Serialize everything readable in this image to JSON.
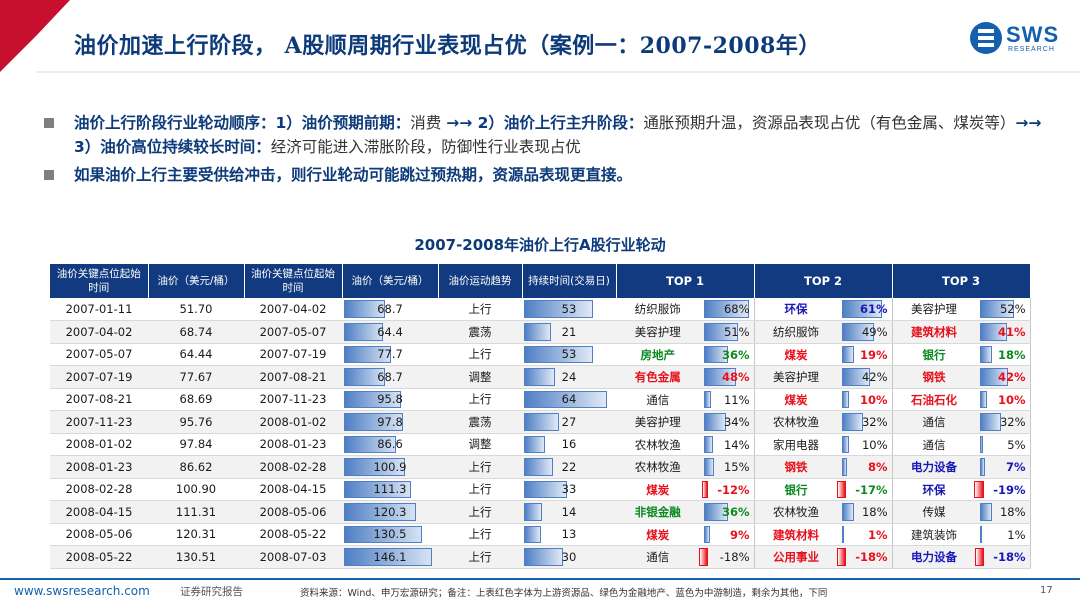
{
  "header": {
    "title": "油价加速上行阶段， A股顺周期行业表现占优（案例一：2007-2008年）",
    "logo_text": "SWS",
    "logo_sub": "RESEARCH"
  },
  "bullets": [
    {
      "parts": [
        {
          "text": "油价上行阶段行业轮动顺序：1）油价预期前期：",
          "style": "hl"
        },
        {
          "text": "消费 ",
          "style": "tx"
        },
        {
          "text": "→→ 2）油价上行主升阶段：",
          "style": "hl"
        },
        {
          "text": "通胀预期升温，资源品表现占优（有色金属、煤炭等）",
          "style": "tx"
        },
        {
          "text": "→→ 3）油价高位持续较长时间：",
          "style": "hl"
        },
        {
          "text": "经济可能进入滞胀阶段，防御性行业表现占优",
          "style": "tx"
        }
      ]
    },
    {
      "parts": [
        {
          "text": "如果油价上行主要受供给冲击，则行业轮动可能跳过预热期，资源品表现更直接。",
          "style": "hl"
        }
      ]
    }
  ],
  "table_title": "2007-2008年油价上行A股行业轮动",
  "columns": [
    "油价关键点位起始时间",
    "油价（美元/桶）",
    "油价关键点位起始时间",
    "油价（美元/桶）",
    "油价运动趋势",
    "持续时间(交易日)",
    "TOP 1",
    "TOP 2",
    "TOP 3"
  ],
  "rows": [
    {
      "start": "2007-01-11",
      "p1": "51.70",
      "end": "2007-04-02",
      "p2": "68.7",
      "p2v": 68.7,
      "trend": "上行",
      "dur": "53",
      "durv": 53,
      "t1": {
        "name": "纺织服饰",
        "pct": "68%",
        "v": 68,
        "c": "other"
      },
      "t2": {
        "name": "环保",
        "pct": "61%",
        "v": 61,
        "c": "blue"
      },
      "t3": {
        "name": "美容护理",
        "pct": "52%",
        "v": 52,
        "c": "other"
      }
    },
    {
      "start": "2007-04-02",
      "p1": "68.74",
      "end": "2007-05-07",
      "p2": "64.4",
      "p2v": 64.4,
      "trend": "震荡",
      "dur": "21",
      "durv": 21,
      "t1": {
        "name": "美容护理",
        "pct": "51%",
        "v": 51,
        "c": "other"
      },
      "t2": {
        "name": "纺织服饰",
        "pct": "49%",
        "v": 49,
        "c": "other"
      },
      "t3": {
        "name": "建筑材料",
        "pct": "41%",
        "v": 41,
        "c": "red"
      }
    },
    {
      "start": "2007-05-07",
      "p1": "64.44",
      "end": "2007-07-19",
      "p2": "77.7",
      "p2v": 77.7,
      "trend": "上行",
      "dur": "53",
      "durv": 53,
      "t1": {
        "name": "房地产",
        "pct": "36%",
        "v": 36,
        "c": "green"
      },
      "t2": {
        "name": "煤炭",
        "pct": "19%",
        "v": 19,
        "c": "red"
      },
      "t3": {
        "name": "银行",
        "pct": "18%",
        "v": 18,
        "c": "green"
      }
    },
    {
      "start": "2007-07-19",
      "p1": "77.67",
      "end": "2007-08-21",
      "p2": "68.7",
      "p2v": 68.7,
      "trend": "调整",
      "dur": "24",
      "durv": 24,
      "t1": {
        "name": "有色金属",
        "pct": "48%",
        "v": 48,
        "c": "red"
      },
      "t2": {
        "name": "美容护理",
        "pct": "42%",
        "v": 42,
        "c": "other"
      },
      "t3": {
        "name": "钢铁",
        "pct": "42%",
        "v": 42,
        "c": "red"
      }
    },
    {
      "start": "2007-08-21",
      "p1": "68.69",
      "end": "2007-11-23",
      "p2": "95.8",
      "p2v": 95.8,
      "trend": "上行",
      "dur": "64",
      "durv": 64,
      "t1": {
        "name": "通信",
        "pct": "11%",
        "v": 11,
        "c": "other"
      },
      "t2": {
        "name": "煤炭",
        "pct": "10%",
        "v": 10,
        "c": "red"
      },
      "t3": {
        "name": "石油石化",
        "pct": "10%",
        "v": 10,
        "c": "red"
      }
    },
    {
      "start": "2007-11-23",
      "p1": "95.76",
      "end": "2008-01-02",
      "p2": "97.8",
      "p2v": 97.8,
      "trend": "震荡",
      "dur": "27",
      "durv": 27,
      "t1": {
        "name": "美容护理",
        "pct": "34%",
        "v": 34,
        "c": "other"
      },
      "t2": {
        "name": "农林牧渔",
        "pct": "32%",
        "v": 32,
        "c": "other"
      },
      "t3": {
        "name": "通信",
        "pct": "32%",
        "v": 32,
        "c": "other"
      }
    },
    {
      "start": "2008-01-02",
      "p1": "97.84",
      "end": "2008-01-23",
      "p2": "86.6",
      "p2v": 86.6,
      "trend": "调整",
      "dur": "16",
      "durv": 16,
      "t1": {
        "name": "农林牧渔",
        "pct": "14%",
        "v": 14,
        "c": "other"
      },
      "t2": {
        "name": "家用电器",
        "pct": "10%",
        "v": 10,
        "c": "other"
      },
      "t3": {
        "name": "通信",
        "pct": "5%",
        "v": 5,
        "c": "other"
      }
    },
    {
      "start": "2008-01-23",
      "p1": "86.62",
      "end": "2008-02-28",
      "p2": "100.9",
      "p2v": 100.9,
      "trend": "上行",
      "dur": "22",
      "durv": 22,
      "t1": {
        "name": "农林牧渔",
        "pct": "15%",
        "v": 15,
        "c": "other"
      },
      "t2": {
        "name": "钢铁",
        "pct": "8%",
        "v": 8,
        "c": "red"
      },
      "t3": {
        "name": "电力设备",
        "pct": "7%",
        "v": 7,
        "c": "blue"
      }
    },
    {
      "start": "2008-02-28",
      "p1": "100.90",
      "end": "2008-04-15",
      "p2": "111.3",
      "p2v": 111.3,
      "trend": "上行",
      "dur": "33",
      "durv": 33,
      "t1": {
        "name": "煤炭",
        "pct": "-12%",
        "v": -12,
        "c": "red"
      },
      "t2": {
        "name": "银行",
        "pct": "-17%",
        "v": -17,
        "c": "green"
      },
      "t3": {
        "name": "环保",
        "pct": "-19%",
        "v": -19,
        "c": "blue"
      }
    },
    {
      "start": "2008-04-15",
      "p1": "111.31",
      "end": "2008-05-06",
      "p2": "120.3",
      "p2v": 120.3,
      "trend": "上行",
      "dur": "14",
      "durv": 14,
      "t1": {
        "name": "非银金融",
        "pct": "36%",
        "v": 36,
        "c": "green"
      },
      "t2": {
        "name": "农林牧渔",
        "pct": "18%",
        "v": 18,
        "c": "other"
      },
      "t3": {
        "name": "传媒",
        "pct": "18%",
        "v": 18,
        "c": "other"
      }
    },
    {
      "start": "2008-05-06",
      "p1": "120.31",
      "end": "2008-05-22",
      "p2": "130.5",
      "p2v": 130.5,
      "trend": "上行",
      "dur": "13",
      "durv": 13,
      "t1": {
        "name": "煤炭",
        "pct": "9%",
        "v": 9,
        "c": "red"
      },
      "t2": {
        "name": "建筑材料",
        "pct": "1%",
        "v": 1,
        "c": "red"
      },
      "t3": {
        "name": "建筑装饰",
        "pct": "1%",
        "v": 1,
        "c": "other"
      }
    },
    {
      "start": "2008-05-22",
      "p1": "130.51",
      "end": "2008-07-03",
      "p2": "146.1",
      "p2v": 146.1,
      "trend": "上行",
      "dur": "30",
      "durv": 30,
      "t1": {
        "name": "通信",
        "pct": "-18%",
        "v": -18,
        "c": "other"
      },
      "t2": {
        "name": "公用事业",
        "pct": "-18%",
        "v": -18,
        "c": "red"
      },
      "t3": {
        "name": "电力设备",
        "pct": "-18%",
        "v": -18,
        "c": "blue"
      }
    }
  ],
  "footer": {
    "url": "www.swsresearch.com",
    "report": "证券研究报告",
    "note": "资料来源：Wind、申万宏源研究；备注：上表红色字体为上游资源品、绿色为金融地产、蓝色为中游制造，剩余为其他，下同",
    "page": "17"
  },
  "colors": {
    "brand": "#0d3b7a",
    "header_bg": "#123a80",
    "red": "#e8101b",
    "green": "#0a8a1f",
    "blue": "#1818b8"
  }
}
